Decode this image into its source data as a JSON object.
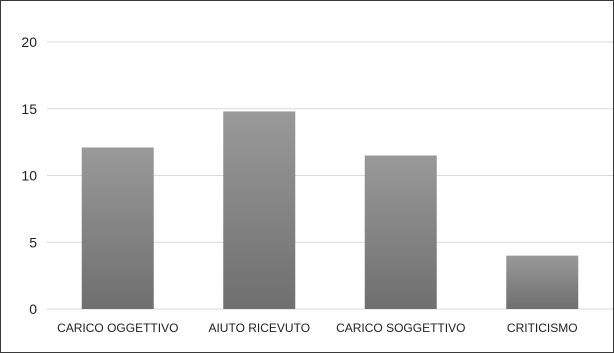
{
  "chart_data": {
    "type": "bar",
    "categories": [
      "CARICO OGGETTIVO",
      "AIUTO RICEVUTO",
      "CARICO SOGGETTIVO",
      "CRITICISMO"
    ],
    "values": [
      12.1,
      14.8,
      11.5,
      4.0
    ],
    "title": "",
    "xlabel": "",
    "ylabel": "",
    "ylim": [
      0,
      20
    ],
    "yticks": [
      0,
      5,
      10,
      15,
      20
    ],
    "grid": true,
    "legend": "none",
    "bar_color_top": "#999999",
    "bar_color_bottom": "#6f6f6f",
    "grid_color": "#d9d9d9"
  }
}
